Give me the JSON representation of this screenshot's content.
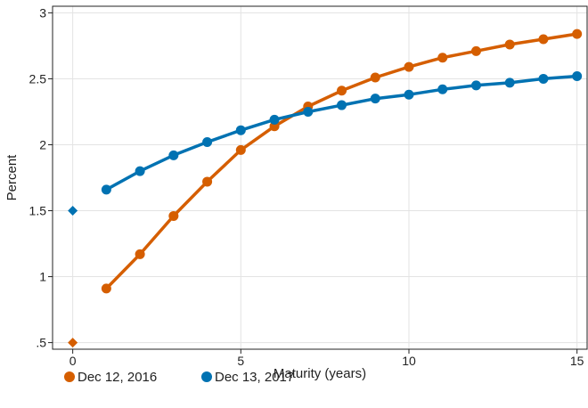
{
  "chart_data": {
    "type": "line",
    "xlabel": "Maturity (years)",
    "ylabel": "Percent",
    "xlim": [
      -0.6,
      15.3
    ],
    "ylim": [
      0.45,
      3.05
    ],
    "x_ticks": [
      0,
      5,
      10,
      15
    ],
    "x_tick_labels": [
      "0",
      "5",
      "10",
      "15"
    ],
    "y_ticks": [
      0.5,
      1,
      1.5,
      2,
      2.5,
      3
    ],
    "y_tick_labels": [
      ".5",
      "1",
      "1.5",
      "2",
      "2.5",
      "3"
    ],
    "grid": true,
    "legend_position": "bottom",
    "series": [
      {
        "name": "Dec 12, 2016",
        "color": "#D55E00",
        "marker": "circle",
        "x": [
          1,
          2,
          3,
          4,
          5,
          6,
          7,
          8,
          9,
          10,
          11,
          12,
          13,
          14,
          15
        ],
        "values": [
          0.91,
          1.17,
          1.46,
          1.72,
          1.96,
          2.14,
          2.29,
          2.41,
          2.51,
          2.59,
          2.66,
          2.71,
          2.76,
          2.8,
          2.84
        ],
        "point_x": 0,
        "point_value": 0.5,
        "point_marker": "diamond"
      },
      {
        "name": "Dec 13, 2017",
        "color": "#0072B2",
        "marker": "circle",
        "x": [
          1,
          2,
          3,
          4,
          5,
          6,
          7,
          8,
          9,
          10,
          11,
          12,
          13,
          14,
          15
        ],
        "values": [
          1.66,
          1.8,
          1.92,
          2.02,
          2.11,
          2.19,
          2.25,
          2.3,
          2.35,
          2.38,
          2.42,
          2.45,
          2.47,
          2.5,
          2.52
        ],
        "point_x": 0,
        "point_value": 1.5,
        "point_marker": "diamond"
      }
    ]
  }
}
